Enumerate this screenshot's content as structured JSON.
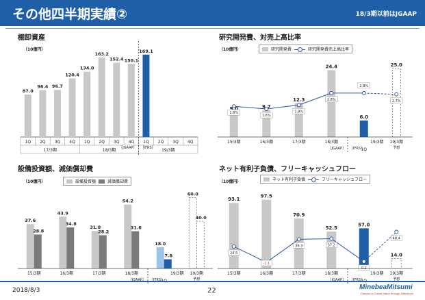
{
  "header": {
    "title": "その他四半期実績②",
    "note": "18/3期以前はJGAAP"
  },
  "footer": {
    "date": "2018/8/3",
    "page": "22",
    "logo": "MinebeaMitsumi",
    "tagline": "Passion to Create Value through Difference"
  },
  "chart_data": [
    {
      "id": "inventory",
      "type": "bar",
      "title": "棚卸資産",
      "unit": "（10億円）",
      "categories": [
        "1Q",
        "2Q",
        "3Q",
        "4Q",
        "1Q",
        "2Q",
        "3Q",
        "4Q",
        "1Q",
        "2Q",
        "3Q",
        "4Q"
      ],
      "values": [
        87.0,
        96.4,
        96.7,
        120.4,
        134.0,
        163.2,
        152.4,
        150.1,
        169.1,
        null,
        null,
        null
      ],
      "value_labels": [
        "87.0",
        "96.4",
        "96.7",
        "120.4",
        "134.0",
        "163.2",
        "152.4",
        "150.1",
        "169.1",
        "",
        "",
        ""
      ],
      "periods": [
        "17/3期",
        "18/3期",
        "19/3期"
      ],
      "standards": [
        "［JGAAP］",
        "［IFRS］"
      ],
      "ylim": [
        0,
        180
      ]
    },
    {
      "id": "rnd",
      "type": "bar+line",
      "title": "研究開発費、対売上高比率",
      "unit": "（10億円）",
      "legend": [
        "研究開発費",
        "研究開発費売上高比率"
      ],
      "categories": [
        "15/3期",
        "16/3期",
        "17/3期",
        "18/3期",
        "1Q",
        "19/3期"
      ],
      "category_notes": [
        "",
        "",
        "",
        "",
        "",
        "予想"
      ],
      "bar_values": [
        9.0,
        9.7,
        12.3,
        24.4,
        6.0,
        25.0
      ],
      "bar_labels": [
        "9.0",
        "9.7",
        "12.3",
        "24.4",
        "6.0",
        "25.0"
      ],
      "ratio_values": [
        1.8,
        1.6,
        1.9,
        2.8,
        2.8,
        2.7
      ],
      "ratio_labels": [
        "1.8%",
        "1.6%",
        "1.9%",
        "2.8%",
        "2.8%",
        "2.7%"
      ],
      "period": "19/3期",
      "standards": [
        "［JGAAP］",
        "［IFRS］"
      ],
      "ylim": [
        0,
        27
      ]
    },
    {
      "id": "capex",
      "type": "bar",
      "title": "設備投資額、減価償却費",
      "unit": "（10億円）",
      "legend": [
        "設備投資額",
        "減価償却費"
      ],
      "categories": [
        "15/3期",
        "16/3期",
        "17/3期",
        "18/3期",
        "1Q",
        "19/3期"
      ],
      "category_notes": [
        "",
        "",
        "",
        "",
        "",
        "予想"
      ],
      "series": [
        {
          "name": "設備投資額",
          "values": [
            37.6,
            43.9,
            31.8,
            54.2,
            18.0,
            60.0
          ]
        },
        {
          "name": "減価償却費",
          "values": [
            28.8,
            34.8,
            28.2,
            31.6,
            7.8,
            40.0
          ]
        }
      ],
      "capex_labels": [
        "37.6",
        "43.9",
        "31.8",
        "54.2",
        "18.0",
        "60.0"
      ],
      "dep_labels": [
        "28.8",
        "34.8",
        "28.2",
        "31.6",
        "7.8",
        "40.0"
      ],
      "period": "19/3期",
      "standards": [
        "［JGAAP］",
        "［IFRS］"
      ],
      "ylim": [
        0,
        65
      ]
    },
    {
      "id": "netdebt",
      "type": "bar+line",
      "title": "ネット有利子負債、フリーキャッシュフロー",
      "unit": "（10億円）",
      "legend": [
        "ネット有利子負債",
        "フリーキャッシュフロー"
      ],
      "categories": [
        "15/3期",
        "16/3期",
        "17/3期",
        "18/3期",
        "1Q",
        "19/3期"
      ],
      "category_notes": [
        "",
        "",
        "",
        "",
        "",
        "予想"
      ],
      "bar_values": [
        93.1,
        97.5,
        70.9,
        52.5,
        57.0,
        14.0
      ],
      "bar_labels": [
        "93.1",
        "97.5",
        "70.9",
        "52.5",
        "57.0",
        "14.0"
      ],
      "fcf_values": [
        24.5,
        -1.1,
        36.3,
        37.2,
        0.2,
        48.4
      ],
      "fcf_labels": [
        "24.5",
        "-1.1",
        "36.3",
        "37.2",
        "0.2",
        "48.4"
      ],
      "period": "19/3期",
      "standards": [
        "［JGAAP］",
        "［IFRS］"
      ],
      "ylim": [
        -10,
        105
      ]
    }
  ]
}
